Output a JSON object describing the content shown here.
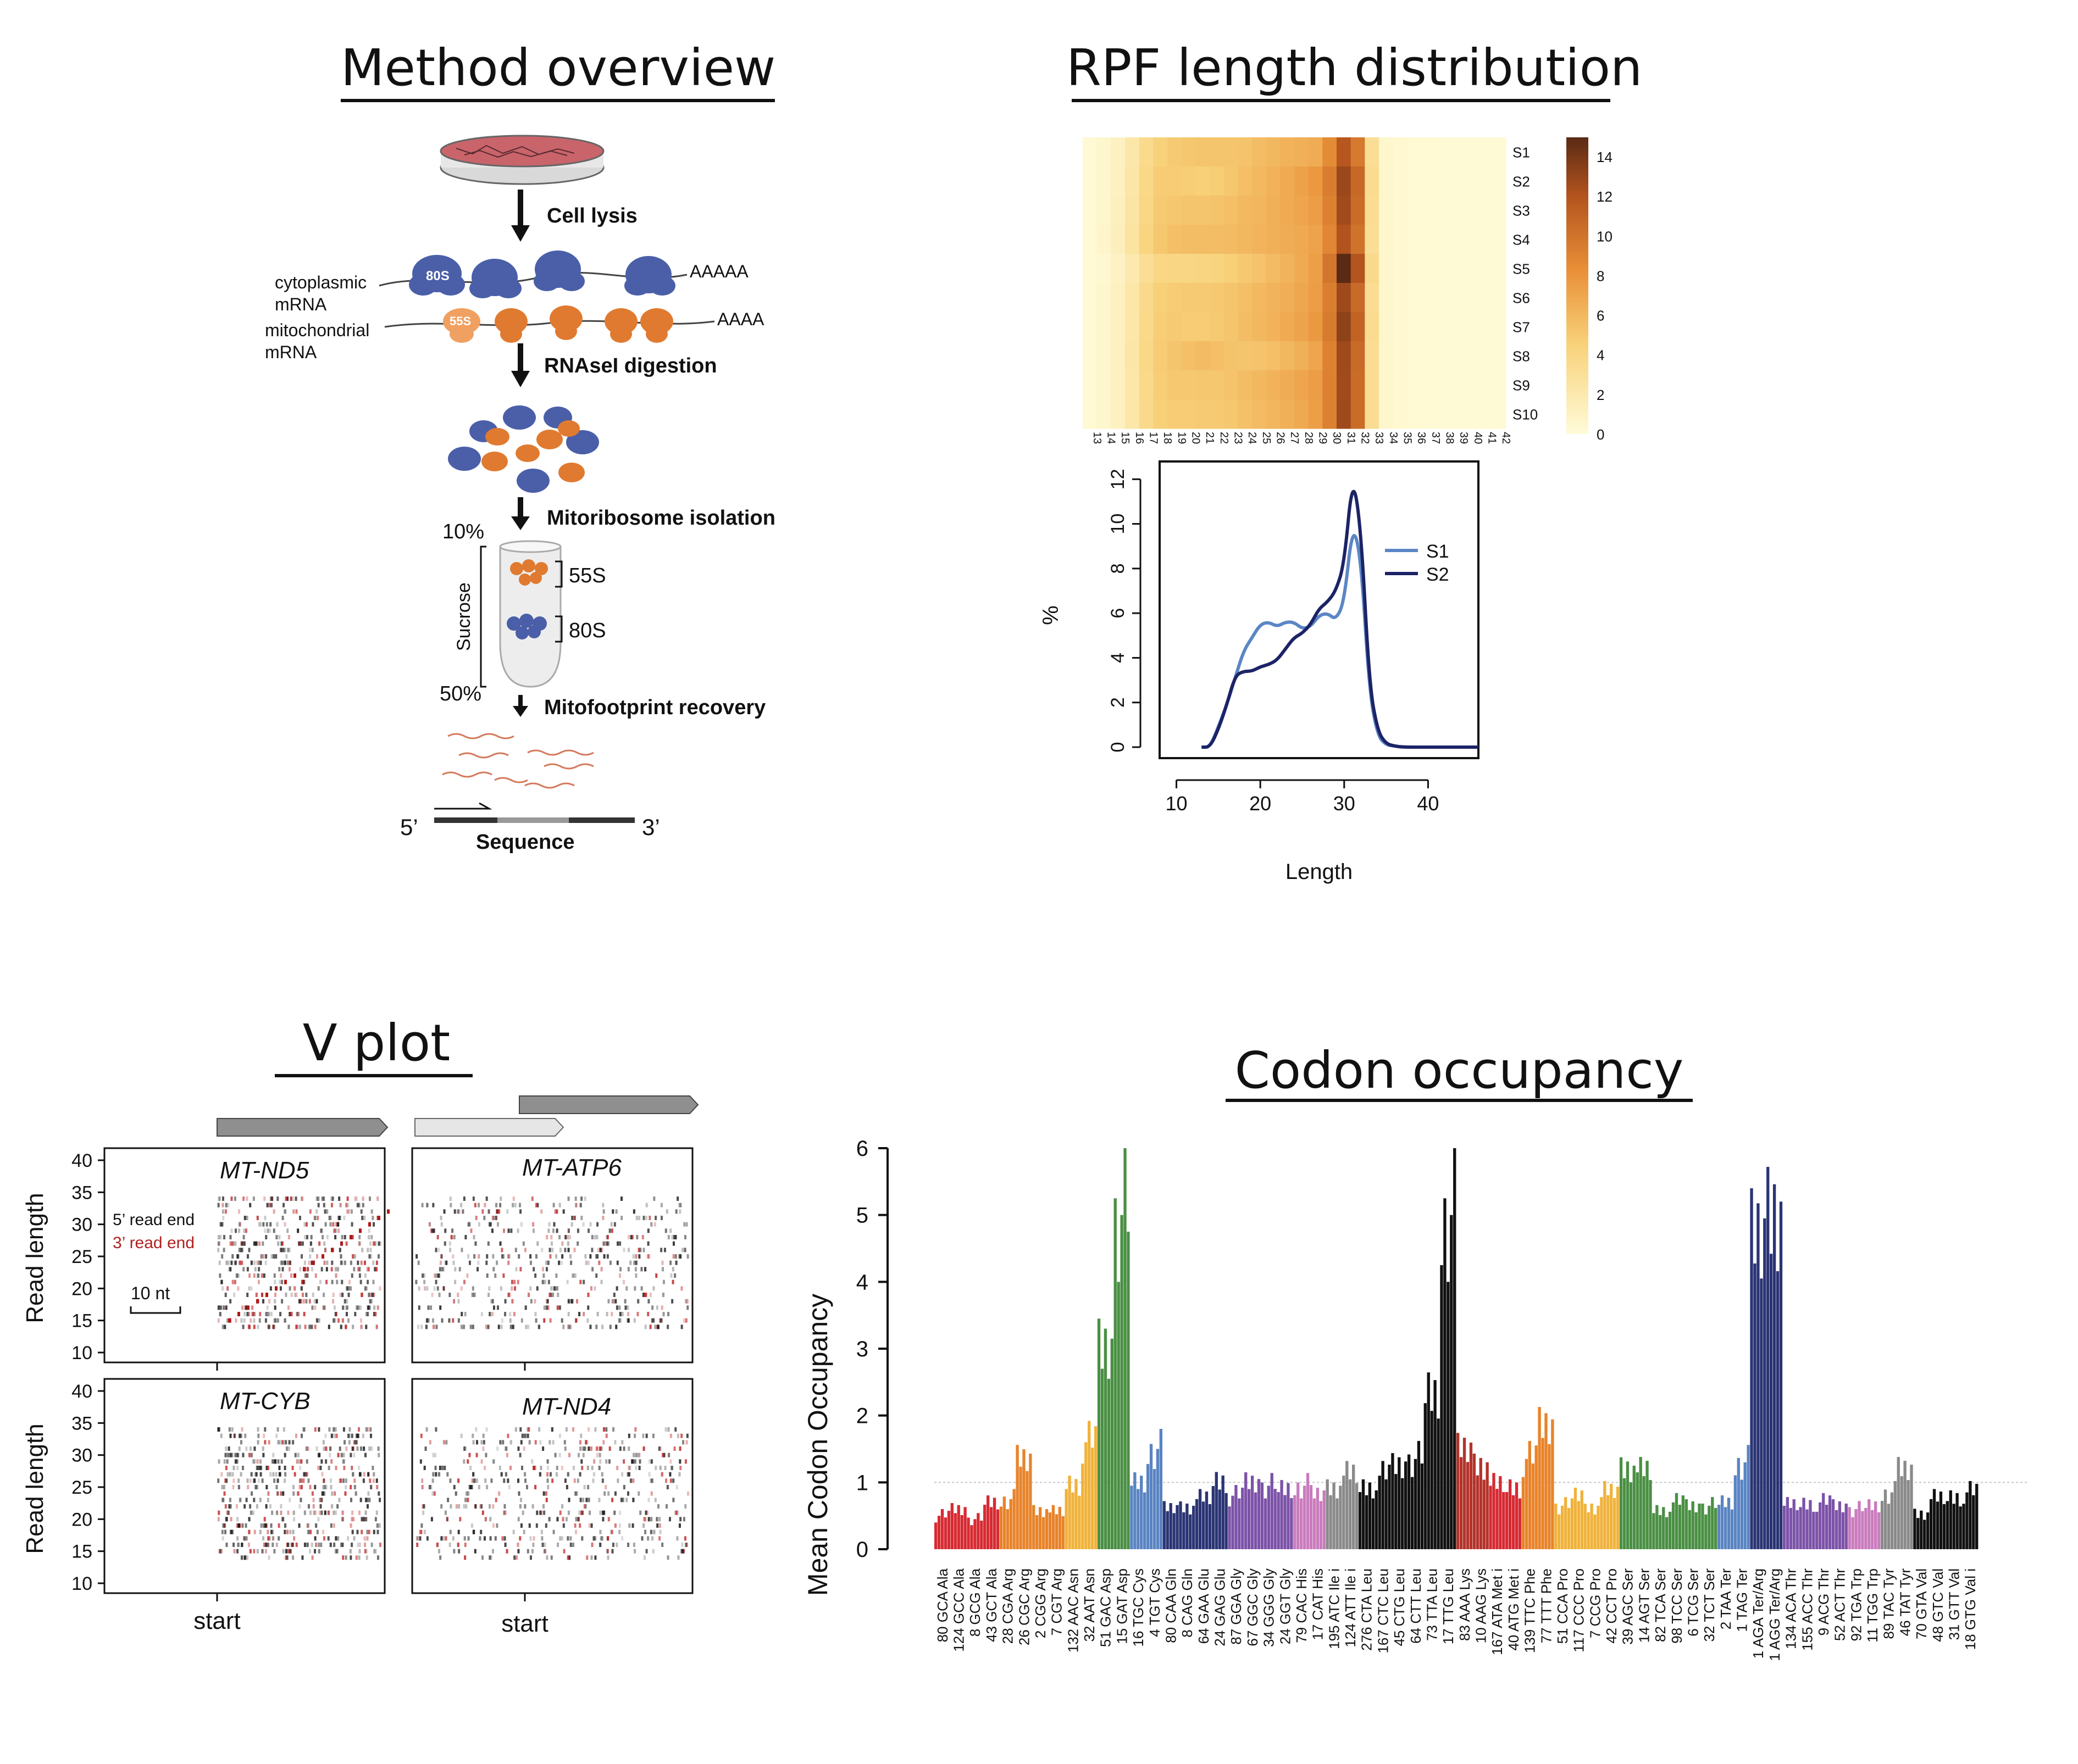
{
  "panels": {
    "method": {
      "title": "Method overview",
      "steps": [
        "Cell lysis",
        "RNAseI digestion",
        "Mitoribosome isolation",
        "Mitofootprint recovery"
      ],
      "cytoplasmic_label": "cytoplasmic mRNA",
      "mito_label": "mitochondrial mRNA",
      "poly_a_cyto": "AAAAA",
      "poly_a_mito": "AAAA",
      "ribo_80s": "80S",
      "ribo_55s": "55S",
      "gradient_top": "10%",
      "gradient_bottom": "50%",
      "gradient_label": "Sucrose",
      "band_55s": "55S",
      "band_80s": "80S",
      "five_prime": "5’",
      "three_prime": "3’",
      "sequence_label": "Sequence"
    },
    "rpf": {
      "title": "RPF length distribution",
      "heatmap_rows": [
        "S1",
        "S2",
        "S3",
        "S4",
        "S5",
        "S6",
        "S7",
        "S8",
        "S9",
        "S10"
      ],
      "colorbar_ticks": [
        "14",
        "12",
        "10",
        "8",
        "6",
        "4",
        "2",
        "0"
      ],
      "line_ylabel": "%",
      "line_xlabel": "Length",
      "line_yticks": [
        "0",
        "2",
        "4",
        "6",
        "8",
        "10",
        "12"
      ],
      "line_xticks": [
        "10",
        "20",
        "30",
        "40"
      ],
      "legend": [
        "S1",
        "S2"
      ]
    },
    "vplot": {
      "title": "V plot",
      "genes": [
        "MT-ND5",
        "MT-ATP6",
        "MT-CYB",
        "MT-ND4"
      ],
      "ylabel": "Read length",
      "yticks": [
        "40",
        "35",
        "30",
        "25",
        "20",
        "15",
        "10"
      ],
      "five_prime_label": "5’ read end",
      "three_prime_label": "3’ read end",
      "scale_label": "10 nt",
      "xlabel": "start"
    },
    "codon": {
      "title": "Codon occupancy",
      "ylabel": "Mean Codon Occupancy",
      "yticks": [
        "0",
        "1",
        "2",
        "3",
        "4",
        "5",
        "6"
      ]
    }
  },
  "chart_data": [
    {
      "type": "heatmap",
      "title": "RPF length distribution",
      "rows": [
        "S1",
        "S2",
        "S3",
        "S4",
        "S5",
        "S6",
        "S7",
        "S8",
        "S9",
        "S10"
      ],
      "columns": [
        13,
        14,
        15,
        16,
        17,
        18,
        19,
        20,
        21,
        22,
        23,
        24,
        25,
        26,
        27,
        28,
        29,
        30,
        31,
        32,
        33,
        34,
        35,
        36,
        37,
        38,
        39,
        40,
        41,
        42
      ],
      "values": [
        [
          0.2,
          0.5,
          1.0,
          2.0,
          3.3,
          4.2,
          4.6,
          4.8,
          4.9,
          4.9,
          4.9,
          5.0,
          5.3,
          5.6,
          5.9,
          6.0,
          6.2,
          8.0,
          11.0,
          9.0,
          3.0,
          0.5,
          0.3,
          0.2,
          0.2,
          0.1,
          0.1,
          0.1,
          0.1,
          0.1
        ],
        [
          0.2,
          0.5,
          1.0,
          2.2,
          3.6,
          4.5,
          4.5,
          4.4,
          4.3,
          4.4,
          4.8,
          5.2,
          5.5,
          5.9,
          6.3,
          6.8,
          7.3,
          8.8,
          12.0,
          10.0,
          3.2,
          0.5,
          0.3,
          0.2,
          0.2,
          0.1,
          0.1,
          0.1,
          0.1,
          0.1
        ],
        [
          0.2,
          0.5,
          1.1,
          2.3,
          3.7,
          4.6,
          4.8,
          4.9,
          4.9,
          5.0,
          5.2,
          5.5,
          5.7,
          6.0,
          6.3,
          6.6,
          7.0,
          8.6,
          11.8,
          9.8,
          3.1,
          0.5,
          0.3,
          0.2,
          0.2,
          0.1,
          0.1,
          0.1,
          0.1,
          0.1
        ],
        [
          0.2,
          0.6,
          1.2,
          2.5,
          3.9,
          4.8,
          5.2,
          5.3,
          5.3,
          5.3,
          5.4,
          5.6,
          5.8,
          6.0,
          6.2,
          6.4,
          6.7,
          8.3,
          11.3,
          9.4,
          3.0,
          0.5,
          0.3,
          0.2,
          0.2,
          0.1,
          0.1,
          0.1,
          0.1,
          0.1
        ],
        [
          0.2,
          0.4,
          0.9,
          1.8,
          3.0,
          3.7,
          3.8,
          3.8,
          3.9,
          4.0,
          4.3,
          4.7,
          5.0,
          5.4,
          5.8,
          6.3,
          6.9,
          9.2,
          14.0,
          11.2,
          3.4,
          0.5,
          0.3,
          0.2,
          0.2,
          0.1,
          0.1,
          0.1,
          0.1,
          0.1
        ],
        [
          0.2,
          0.5,
          1.0,
          2.1,
          3.4,
          4.3,
          4.5,
          4.6,
          4.6,
          4.7,
          4.9,
          5.2,
          5.5,
          5.8,
          6.1,
          6.5,
          7.0,
          8.7,
          11.9,
          9.9,
          3.1,
          0.5,
          0.3,
          0.2,
          0.2,
          0.1,
          0.1,
          0.1,
          0.1,
          0.1
        ],
        [
          0.2,
          0.5,
          1.0,
          2.1,
          3.5,
          4.4,
          4.6,
          4.5,
          4.5,
          4.6,
          4.9,
          5.3,
          5.6,
          5.9,
          6.3,
          6.7,
          7.2,
          8.9,
          12.4,
          10.3,
          3.2,
          0.5,
          0.3,
          0.2,
          0.2,
          0.1,
          0.1,
          0.1,
          0.1,
          0.1
        ],
        [
          0.2,
          0.5,
          1.0,
          2.2,
          3.6,
          4.5,
          4.9,
          5.2,
          5.4,
          5.2,
          5.0,
          4.9,
          5.0,
          5.2,
          5.6,
          6.0,
          6.6,
          8.5,
          11.9,
          9.9,
          3.1,
          0.5,
          0.3,
          0.2,
          0.2,
          0.1,
          0.1,
          0.1,
          0.1,
          0.1
        ],
        [
          0.2,
          0.5,
          1.0,
          2.1,
          3.5,
          4.4,
          4.7,
          4.7,
          4.8,
          4.8,
          5.0,
          5.3,
          5.6,
          5.9,
          6.2,
          6.6,
          7.0,
          8.6,
          11.8,
          9.8,
          3.1,
          0.5,
          0.3,
          0.2,
          0.2,
          0.1,
          0.1,
          0.1,
          0.1,
          0.1
        ],
        [
          0.2,
          0.5,
          1.0,
          2.1,
          3.4,
          4.3,
          4.5,
          4.5,
          4.6,
          4.6,
          4.8,
          5.1,
          5.4,
          5.7,
          6.0,
          6.4,
          6.9,
          8.6,
          11.9,
          9.8,
          3.1,
          0.5,
          0.3,
          0.2,
          0.2,
          0.1,
          0.1,
          0.1,
          0.1,
          0.1
        ]
      ],
      "colorbar_range": [
        0,
        14
      ]
    },
    {
      "type": "line",
      "xlabel": "Length",
      "ylabel": "%",
      "xlim": [
        8,
        46
      ],
      "ylim": [
        0,
        12.5
      ],
      "series": [
        {
          "name": "S1",
          "color": "#5b86c5",
          "points": [
            [
              13,
              0
            ],
            [
              14,
              0
            ],
            [
              15,
              0.9
            ],
            [
              16,
              1.9
            ],
            [
              17,
              3.1
            ],
            [
              18,
              4.3
            ],
            [
              19,
              4.9
            ],
            [
              20,
              5.5
            ],
            [
              21,
              5.6
            ],
            [
              22,
              5.4
            ],
            [
              23,
              5.6
            ],
            [
              24,
              5.6
            ],
            [
              25,
              5.3
            ],
            [
              26,
              5.4
            ],
            [
              27,
              5.9
            ],
            [
              28,
              6.0
            ],
            [
              29,
              5.7
            ],
            [
              30,
              6.5
            ],
            [
              31,
              10.0
            ],
            [
              32,
              8.5
            ],
            [
              33,
              2.5
            ],
            [
              34,
              0.5
            ],
            [
              35,
              0.1
            ],
            [
              36,
              0.05
            ],
            [
              37,
              0
            ],
            [
              40,
              0
            ],
            [
              46,
              0
            ]
          ]
        },
        {
          "name": "S2",
          "color": "#1c2366",
          "points": [
            [
              13,
              0
            ],
            [
              14,
              0
            ],
            [
              15,
              0.8
            ],
            [
              16,
              1.9
            ],
            [
              17,
              3.2
            ],
            [
              18,
              3.4
            ],
            [
              19,
              3.4
            ],
            [
              20,
              3.6
            ],
            [
              21,
              3.7
            ],
            [
              22,
              3.9
            ],
            [
              23,
              4.4
            ],
            [
              24,
              4.9
            ],
            [
              25,
              5.1
            ],
            [
              26,
              5.5
            ],
            [
              27,
              6.2
            ],
            [
              28,
              6.5
            ],
            [
              29,
              7.0
            ],
            [
              30,
              8.2
            ],
            [
              31,
              12.2
            ],
            [
              32,
              9.8
            ],
            [
              33,
              2.8
            ],
            [
              34,
              0.7
            ],
            [
              35,
              0.15
            ],
            [
              36,
              0.05
            ],
            [
              37,
              0
            ],
            [
              40,
              0
            ],
            [
              46,
              0
            ]
          ]
        }
      ]
    },
    {
      "type": "bar",
      "title": "Codon occupancy",
      "ylabel": "Mean Codon Occupancy",
      "ylim": [
        0,
        6
      ],
      "reference_line": 1,
      "categories": [
        "80 GCA Ala",
        "124 GCC Ala",
        "8 GCG Ala",
        "43 GCT Ala",
        "28 CGA Arg",
        "26 CGC Arg",
        "2 CGG Arg",
        "7 CGT Arg",
        "132 AAC Asn",
        "32 AAT Asn",
        "51 GAC Asp",
        "15 GAT Asp",
        "16 TGC Cys",
        "4 TGT Cys",
        "80 CAA Gln",
        "8 CAG Gln",
        "64 GAA Glu",
        "24 GAG Glu",
        "87 GGA Gly",
        "67 GGC Gly",
        "34 GGG Gly",
        "24 GGT Gly",
        "79 CAC His",
        "17 CAT His",
        "195 ATC Ile i",
        "124 ATT Ile i",
        "276 CTA Leu",
        "167 CTC Leu",
        "45 CTG Leu",
        "64 CTT Leu",
        "73 TTA Leu",
        "17 TTG Leu",
        "83 AAA Lys",
        "10 AAG Lys",
        "167 ATA Met i",
        "40 ATG Met i",
        "139 TTC Phe",
        "77 TTT Phe",
        "51 CCA Pro",
        "117 CCC Pro",
        "7 CCG Pro",
        "42 CCT Pro",
        "39 AGC Ser",
        "14 AGT Ser",
        "82 TCA Ser",
        "98 TCC Ser",
        "6 TCG Ser",
        "32 TCT Ser",
        "2 TAA Ter",
        "1 TAG Ter",
        "1 AGA Ter/Arg",
        "1 AGG Ter/Arg",
        "134 ACA Thr",
        "155 ACC Thr",
        "9 ACG Thr",
        "52 ACT Thr",
        "92 TGA Trp",
        "11 TGG Trp",
        "89 TAC Tyr",
        "46 TAT Tyr",
        "70 GTA Val",
        "48 GTC Val",
        "31 GTT Val",
        "18 GTG Val i"
      ],
      "values": [
        0.5,
        0.6,
        0.45,
        0.7,
        0.75,
        1.3,
        0.6,
        0.55,
        1.0,
        1.6,
        3.0,
        5.0,
        1.0,
        1.5,
        0.6,
        0.65,
        0.75,
        1.05,
        0.8,
        1.0,
        0.95,
        0.9,
        0.95,
        0.8,
        0.95,
        1.1,
        0.95,
        1.1,
        1.25,
        1.35,
        2.3,
        5.0,
        1.45,
        1.3,
        0.95,
        0.95,
        1.35,
        1.85,
        0.65,
        0.8,
        0.65,
        0.85,
        1.25,
        1.15,
        0.6,
        0.7,
        0.65,
        0.65,
        0.7,
        1.3,
        4.5,
        5.2,
        0.65,
        0.7,
        0.7,
        0.65,
        0.6,
        0.65,
        0.85,
        1.15,
        0.55,
        0.75,
        0.8,
        0.85
      ],
      "colors": [
        "#d62a32",
        "#d62a32",
        "#d62a32",
        "#d62a32",
        "#e8832a",
        "#e8832a",
        "#e8832a",
        "#e8832a",
        "#f0b23a",
        "#f0b23a",
        "#4a8f44",
        "#4a8f44",
        "#5a84c2",
        "#5a84c2",
        "#2a3474",
        "#2a3474",
        "#2a3474",
        "#2a3474",
        "#7c52a8",
        "#7c52a8",
        "#7c52a8",
        "#7c52a8",
        "#c97bbd",
        "#c97bbd",
        "#8a8a8a",
        "#8a8a8a",
        "#111111",
        "#111111",
        "#111111",
        "#111111",
        "#111111",
        "#111111",
        "#b3332b",
        "#b3332b",
        "#d62a32",
        "#d62a32",
        "#e8832a",
        "#e8832a",
        "#f0b23a",
        "#f0b23a",
        "#f0b23a",
        "#f0b23a",
        "#4a8f44",
        "#4a8f44",
        "#4a8f44",
        "#4a8f44",
        "#4a8f44",
        "#4a8f44",
        "#5a84c2",
        "#5a84c2",
        "#2a3474",
        "#2a3474",
        "#7c52a8",
        "#7c52a8",
        "#7c52a8",
        "#7c52a8",
        "#c97bbd",
        "#c97bbd",
        "#8a8a8a",
        "#8a8a8a",
        "#111111",
        "#111111",
        "#111111",
        "#111111"
      ]
    }
  ]
}
